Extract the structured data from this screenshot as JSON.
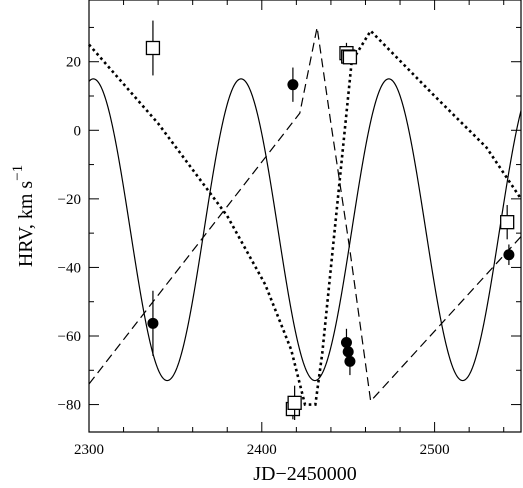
{
  "chart_data": {
    "type": "scatter",
    "xlabel": "JD−2450000",
    "ylabel_main": "HRV, km s",
    "ylabel_sup": "−1",
    "xlim": [
      2300,
      2550
    ],
    "ylim": [
      -88,
      38
    ],
    "x_ticks": [
      2300,
      2400,
      2500
    ],
    "x_tick_labels": [
      "2300",
      "2400",
      "2500"
    ],
    "y_ticks": [
      20,
      0,
      -20,
      -40,
      -60,
      -80
    ],
    "y_tick_labels": [
      "20",
      "0",
      "−20",
      "−40",
      "−60",
      "−80"
    ],
    "grid": false,
    "series": [
      {
        "style": "filled-circle-with-errorbar",
        "points": [
          {
            "x": 2337,
            "y": -56.3,
            "err": 9.5
          },
          {
            "x": 2418,
            "y": 13.3,
            "err": 5
          },
          {
            "x": 2449,
            "y": -61.9,
            "err": 4
          },
          {
            "x": 2450,
            "y": -64.6,
            "err": 4
          },
          {
            "x": 2451,
            "y": -67.4,
            "err": 4
          },
          {
            "x": 2543,
            "y": -36.3,
            "err": 3
          }
        ]
      },
      {
        "style": "open-square-with-errorbar",
        "points": [
          {
            "x": 2337,
            "y": 24,
            "err": 8
          },
          {
            "x": 2418,
            "y": -81.3,
            "err": 3
          },
          {
            "x": 2419,
            "y": -79.5,
            "err": 5
          },
          {
            "x": 2449,
            "y": 22.5,
            "err": 3
          },
          {
            "x": 2450,
            "y": 21.5,
            "err": 2
          },
          {
            "x": 2451,
            "y": 21.3,
            "err": 2
          },
          {
            "x": 2542,
            "y": -26.8,
            "err": 5
          }
        ]
      }
    ],
    "curves": [
      {
        "style": "solid",
        "description_model": "sinusoid",
        "params": {
          "mean": -29,
          "amplitude": 44,
          "period": 85.5,
          "peak_x": 2302.5
        }
      },
      {
        "style": "dashed",
        "points": [
          [
            2300,
            -74
          ],
          [
            2422,
            5
          ],
          [
            2432,
            30
          ],
          [
            2440,
            2
          ],
          [
            2451,
            -35
          ],
          [
            2463,
            -79
          ],
          [
            2550,
            -31
          ]
        ]
      },
      {
        "style": "dotted",
        "points": [
          [
            2300,
            25
          ],
          [
            2340,
            2
          ],
          [
            2380,
            -25
          ],
          [
            2402,
            -45
          ],
          [
            2417,
            -64
          ],
          [
            2425,
            -80
          ],
          [
            2431,
            -80
          ],
          [
            2435,
            -65
          ],
          [
            2440,
            -40
          ],
          [
            2446,
            -10
          ],
          [
            2452,
            20
          ],
          [
            2463,
            29
          ],
          [
            2500,
            10
          ],
          [
            2530,
            -5
          ],
          [
            2550,
            -20
          ]
        ]
      }
    ]
  }
}
